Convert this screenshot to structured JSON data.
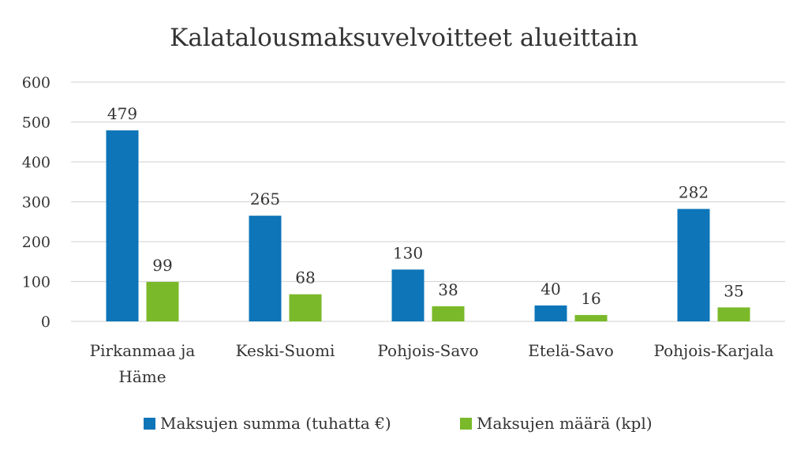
{
  "chart_data": {
    "type": "bar",
    "title": "Kalatalousmaksuvelvoitteet alueittain",
    "xlabel": "",
    "ylabel": "",
    "categories": [
      [
        "Pirkanmaa ja",
        "Häme"
      ],
      [
        "Keski-Suomi"
      ],
      [
        "Pohjois-Savo"
      ],
      [
        "Etelä-Savo"
      ],
      [
        "Pohjois-Karjala"
      ]
    ],
    "series": [
      {
        "name": "Maksujen summa (tuhatta €)",
        "color": "#0d75b8",
        "values": [
          479,
          265,
          130,
          40,
          282
        ]
      },
      {
        "name": "Maksujen määrä (kpl)",
        "color": "#7ab929",
        "values": [
          99,
          68,
          38,
          16,
          35
        ]
      }
    ],
    "ylim": [
      0,
      600
    ],
    "yticks": [
      "0",
      "100",
      "200",
      "300",
      "400",
      "500",
      "600"
    ],
    "grid": true,
    "data_labels": true,
    "legend_position": "bottom"
  }
}
